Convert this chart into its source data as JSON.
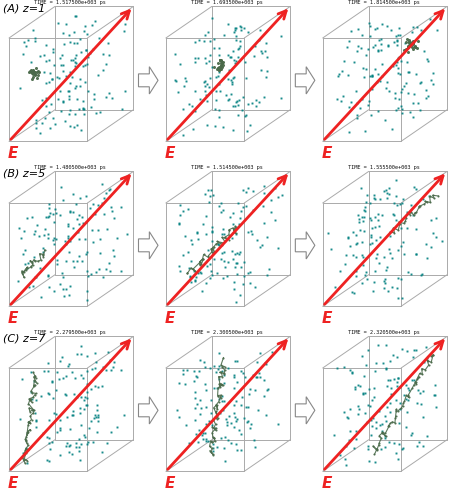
{
  "panel_labels": [
    "(A) z=1",
    "(B) z=5",
    "(C) z=7"
  ],
  "row_timestamps": [
    [
      "TIME = 1.517500e+003 ps",
      "TIME = 1.693500e+003 ps",
      "TIME = 1.814500e+003 ps"
    ],
    [
      "TIME = 1.480500e+003 ps",
      "TIME = 1.514500e+003 ps",
      "TIME = 1.555500e+003 ps"
    ],
    [
      "TIME = 2.279500e+003 ps",
      "TIME = 2.300500e+003 ps",
      "TIME = 2.320500e+003 ps"
    ]
  ],
  "bg_color": "#ffffff",
  "box_color": "#aaaaaa",
  "dot_color": "#008080",
  "peg_color": "#4a6a4a",
  "arrow_color": "#ee2222",
  "E_color": "#ee2222",
  "fig_width": 4.52,
  "fig_height": 5.0,
  "dpi": 100
}
